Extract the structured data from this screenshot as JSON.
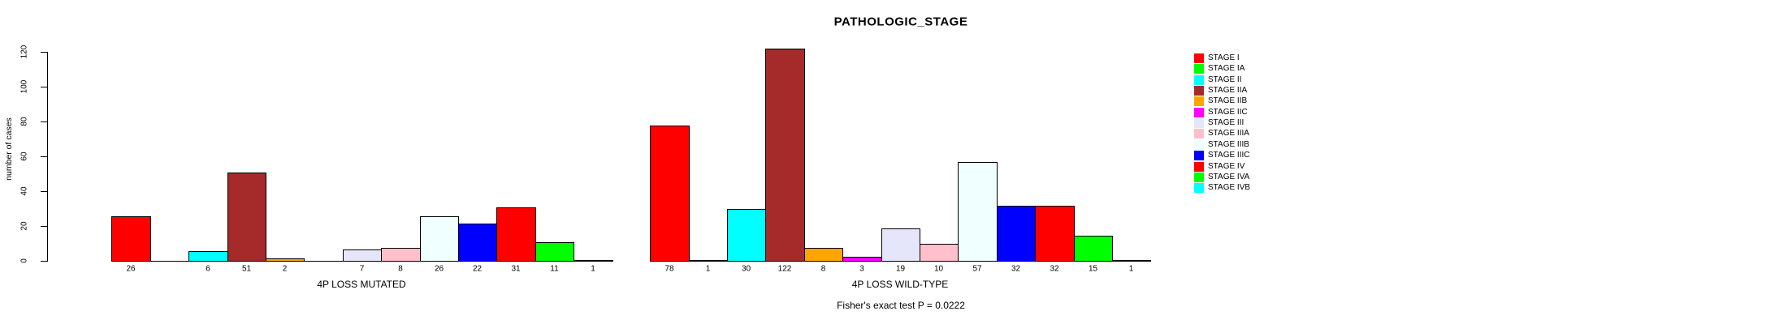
{
  "chart_data": {
    "type": "bar",
    "title": "PATHOLOGIC_STAGE",
    "ylabel": "number of cases",
    "xlabel": "",
    "ylim": [
      0,
      120
    ],
    "yticks": [
      0,
      20,
      40,
      60,
      80,
      100,
      120
    ],
    "grid": false,
    "legend_position": "right",
    "categories": [
      "STAGE I",
      "STAGE IA",
      "STAGE II",
      "STAGE IIA",
      "STAGE IIB",
      "STAGE IIC",
      "STAGE III",
      "STAGE IIIA",
      "STAGE IIIB",
      "STAGE IIIC",
      "STAGE IV",
      "STAGE IVA",
      "STAGE IVB"
    ],
    "category_colors": [
      "#FF0000",
      "#00FF00",
      "#00FFFF",
      "#A52A2A",
      "#FFA500",
      "#FF00FF",
      "#E6E6FA",
      "#FFC0CB",
      "#F0FFFF",
      "#0000FF",
      "#FF0000",
      "#00FF00",
      "#00FFFF"
    ],
    "groups": [
      {
        "label": "4P LOSS MUTATED",
        "values": [
          26,
          0,
          6,
          51,
          2,
          0,
          7,
          8,
          26,
          22,
          31,
          11,
          1
        ],
        "value_labels": [
          "26",
          "",
          "6",
          "51",
          "2",
          "",
          "7",
          "8",
          "26",
          "22",
          "31",
          "11",
          "1"
        ]
      },
      {
        "label": "4P LOSS WILD-TYPE",
        "values": [
          78,
          1,
          30,
          122,
          8,
          3,
          19,
          10,
          57,
          32,
          32,
          15,
          1
        ],
        "value_labels": [
          "78",
          "1",
          "30",
          "122",
          "8",
          "3",
          "19",
          "10",
          "57",
          "32",
          "32",
          "15",
          "1"
        ]
      }
    ],
    "annotation": "Fisher's exact test P = 0.0222",
    "bar_border_color": "#000000",
    "background_color": "#FFFFFF"
  }
}
